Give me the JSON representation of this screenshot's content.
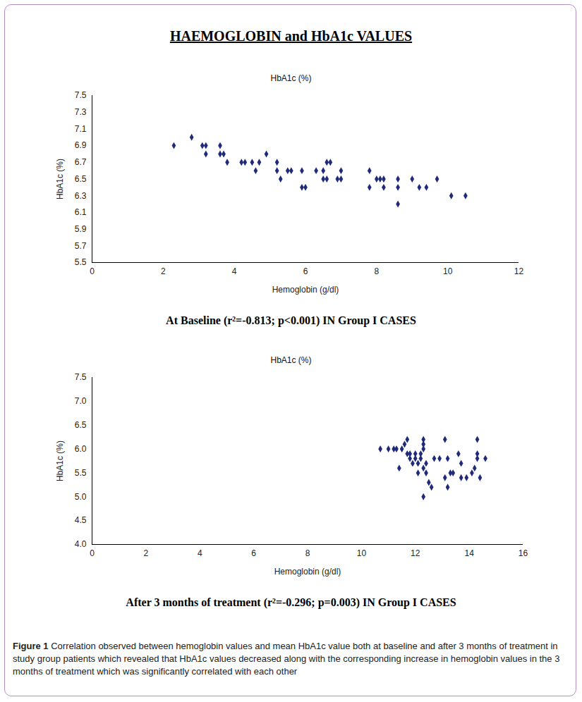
{
  "heading": "HAEMOGLOBIN and HbA1c VALUES",
  "figure_caption": {
    "label": "Figure 1",
    "text": "Correlation observed between hemoglobin values and mean HbA1c value both at baseline and after 3 months of treatment in study group patients which revealed that HbA1c values decreased along with the corresponding increase in hemoglobin values in the 3 months of treatment which was significantly correlated with each other"
  },
  "chart_data": [
    {
      "type": "scatter",
      "title": "HbA1c (%)",
      "caption": "At Baseline (r²=-0.813; p<0.001) IN Group I CASES",
      "x_label": "Hemoglobin (g/dl)",
      "y_label": "HbA1c (%)",
      "color": "#1f2a7a",
      "marker": "diamond",
      "xlim": [
        0,
        12
      ],
      "xticks": [
        0,
        2,
        4,
        6,
        8,
        10,
        12
      ],
      "ylim": [
        5.5,
        7.5
      ],
      "yticks": [
        5.5,
        5.7,
        5.9,
        6.1,
        6.3,
        6.5,
        6.7,
        6.9,
        7.1,
        7.3,
        7.5
      ],
      "x": [
        2.3,
        2.8,
        3.1,
        3.2,
        3.2,
        3.6,
        3.6,
        3.7,
        3.8,
        4.2,
        4.3,
        4.5,
        4.6,
        4.7,
        4.9,
        5.2,
        5.2,
        5.3,
        5.5,
        5.6,
        5.9,
        5.9,
        6.0,
        6.3,
        6.5,
        6.5,
        6.6,
        6.6,
        6.7,
        6.9,
        7.0,
        7.0,
        7.8,
        7.8,
        8.0,
        8.1,
        8.2,
        8.2,
        8.6,
        8.6,
        8.6,
        9.0,
        9.2,
        9.4,
        9.7,
        10.1,
        10.5
      ],
      "y": [
        6.9,
        7.0,
        6.9,
        6.9,
        6.8,
        6.9,
        6.8,
        6.8,
        6.7,
        6.7,
        6.7,
        6.7,
        6.6,
        6.7,
        6.8,
        6.7,
        6.6,
        6.5,
        6.6,
        6.6,
        6.6,
        6.4,
        6.4,
        6.6,
        6.6,
        6.5,
        6.5,
        6.7,
        6.7,
        6.5,
        6.5,
        6.6,
        6.6,
        6.4,
        6.5,
        6.5,
        6.5,
        6.4,
        6.5,
        6.4,
        6.2,
        6.5,
        6.4,
        6.4,
        6.5,
        6.3,
        6.3
      ]
    },
    {
      "type": "scatter",
      "title": "HbA1c (%)",
      "caption": "After 3 months of treatment (r²=-0.296; p=0.003) IN Group I CASES",
      "x_label": "Hemoglobin (g/dl)",
      "y_label": "HbA1c (%)",
      "color": "#1f2a7a",
      "marker": "diamond",
      "xlim": [
        0,
        16
      ],
      "xticks": [
        0,
        2,
        4,
        6,
        8,
        10,
        12,
        14,
        16
      ],
      "ylim": [
        4,
        7.5
      ],
      "yticks": [
        4,
        4.5,
        5,
        5.5,
        6,
        6.5,
        7,
        7.5
      ],
      "x": [
        10.7,
        11.0,
        11.2,
        11.3,
        11.4,
        11.5,
        11.6,
        11.7,
        11.7,
        11.8,
        11.8,
        11.9,
        12.0,
        12.0,
        12.1,
        12.1,
        12.2,
        12.2,
        12.3,
        12.3,
        12.3,
        12.3,
        12.3,
        12.4,
        12.4,
        12.5,
        12.6,
        12.7,
        12.9,
        13.1,
        13.1,
        13.2,
        13.2,
        13.3,
        13.4,
        13.6,
        13.7,
        13.7,
        13.9,
        14.1,
        14.2,
        14.3,
        14.3,
        14.3,
        14.4,
        14.6
      ],
      "y": [
        6.0,
        6.0,
        6.0,
        6.0,
        5.6,
        6.0,
        6.1,
        6.2,
        5.9,
        5.8,
        5.9,
        5.7,
        5.8,
        5.9,
        5.5,
        5.7,
        5.9,
        5.8,
        6.2,
        6.1,
        6.0,
        5.6,
        5.0,
        5.5,
        5.7,
        5.3,
        5.2,
        5.8,
        5.8,
        6.2,
        5.4,
        5.2,
        5.8,
        5.5,
        5.5,
        5.9,
        5.7,
        5.4,
        5.4,
        5.5,
        5.6,
        6.2,
        5.9,
        5.8,
        5.4,
        5.8
      ]
    }
  ]
}
